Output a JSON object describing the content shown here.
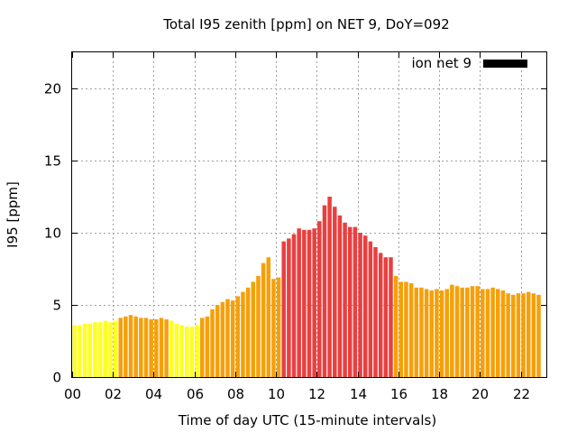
{
  "chart_data": {
    "type": "bar",
    "title": "Total I95 zenith [ppm] on NET 9, DoY=092",
    "xlabel": "Time of day UTC (15-minute intervals)",
    "ylabel": "I95 [ppm]",
    "xlim": [
      0,
      23.25
    ],
    "ylim": [
      0,
      22.5
    ],
    "x_ticks": [
      "00",
      "02",
      "04",
      "06",
      "08",
      "10",
      "12",
      "14",
      "16",
      "18",
      "20",
      "22"
    ],
    "y_ticks": [
      "0",
      "5",
      "10",
      "15",
      "20"
    ],
    "grid": true,
    "legend": {
      "position": "top-right",
      "label": "ion net 9",
      "color": "#000000"
    },
    "bar_colors": {
      "low": "#ffff20",
      "medium": "#f5a00a",
      "high": "#e84040"
    },
    "bar_interval_hours": 0.25,
    "values": [
      3.6,
      3.6,
      3.7,
      3.7,
      3.8,
      3.8,
      3.9,
      3.8,
      3.9,
      4.1,
      4.2,
      4.3,
      4.2,
      4.1,
      4.1,
      4.0,
      4.0,
      4.1,
      4.0,
      3.9,
      3.7,
      3.6,
      3.5,
      3.5,
      3.6,
      4.1,
      4.2,
      4.7,
      5.0,
      5.2,
      5.4,
      5.3,
      5.6,
      5.9,
      6.2,
      6.6,
      7.0,
      7.9,
      8.3,
      6.8,
      6.9,
      9.4,
      9.6,
      9.9,
      10.3,
      10.2,
      10.2,
      10.3,
      10.8,
      11.9,
      12.5,
      11.8,
      11.2,
      10.7,
      10.4,
      10.4,
      10.0,
      9.8,
      9.4,
      9.0,
      8.6,
      8.3,
      8.3,
      7.0,
      6.6,
      6.6,
      6.5,
      6.2,
      6.2,
      6.1,
      6.0,
      6.1,
      6.0,
      6.1,
      6.4,
      6.3,
      6.2,
      6.2,
      6.3,
      6.3,
      6.1,
      6.1,
      6.2,
      6.1,
      6.0,
      5.8,
      5.7,
      5.8,
      5.8,
      5.9,
      5.8,
      5.7
    ],
    "levels": [
      "low",
      "low",
      "low",
      "low",
      "low",
      "low",
      "low",
      "low",
      "low",
      "medium",
      "medium",
      "medium",
      "medium",
      "medium",
      "medium",
      "medium",
      "medium",
      "medium",
      "medium",
      "low",
      "low",
      "low",
      "low",
      "low",
      "low",
      "medium",
      "medium",
      "medium",
      "medium",
      "medium",
      "medium",
      "medium",
      "medium",
      "medium",
      "medium",
      "medium",
      "medium",
      "medium",
      "medium",
      "medium",
      "medium",
      "high",
      "high",
      "high",
      "high",
      "high",
      "high",
      "high",
      "high",
      "high",
      "high",
      "high",
      "high",
      "high",
      "high",
      "high",
      "high",
      "high",
      "high",
      "high",
      "high",
      "high",
      "high",
      "medium",
      "medium",
      "medium",
      "medium",
      "medium",
      "medium",
      "medium",
      "medium",
      "medium",
      "medium",
      "medium",
      "medium",
      "medium",
      "medium",
      "medium",
      "medium",
      "medium",
      "medium",
      "medium",
      "medium",
      "medium",
      "medium",
      "medium",
      "medium",
      "medium",
      "medium",
      "medium",
      "medium",
      "medium"
    ]
  }
}
